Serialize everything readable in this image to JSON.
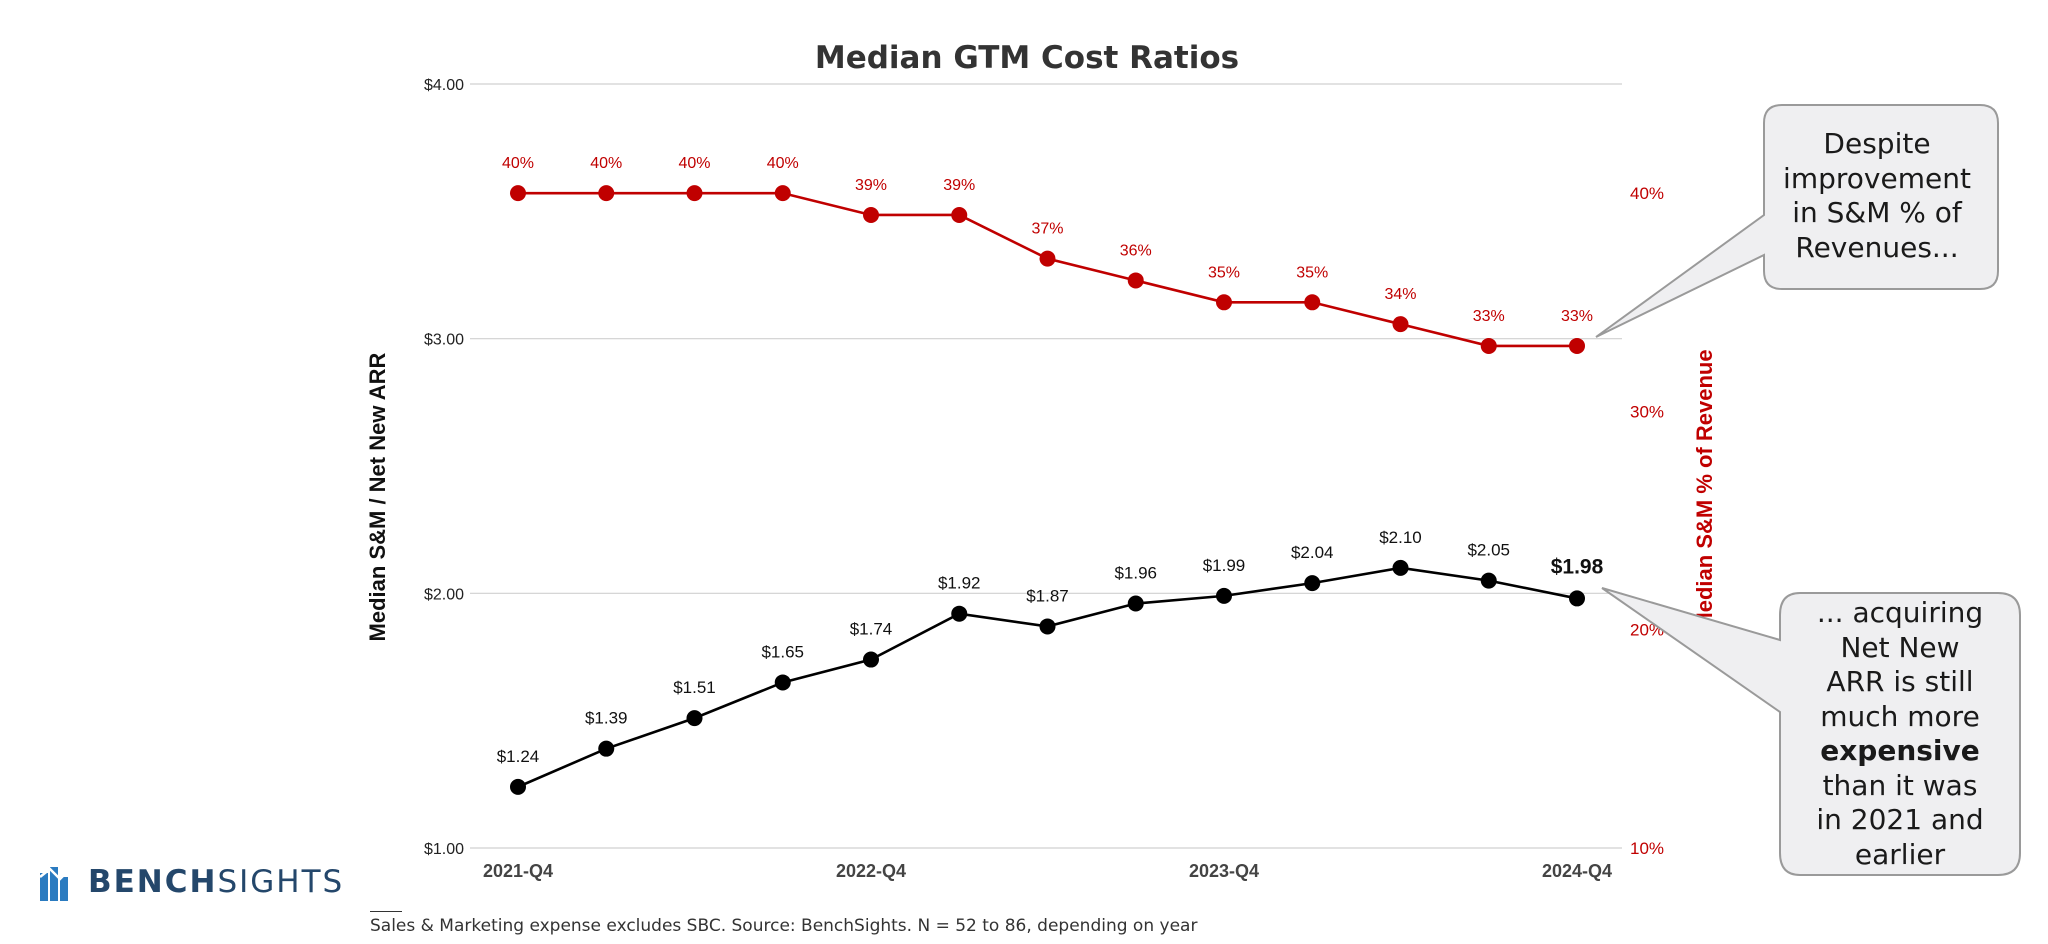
{
  "chart_data": {
    "type": "line",
    "title": "Median GTM Cost Ratios",
    "categories": [
      "2021-Q4",
      "",
      "",
      "",
      "2022-Q4",
      "",
      "",
      "",
      "2023-Q4",
      "",
      "",
      "",
      "2024-Q4"
    ],
    "x_tick_labels": [
      "2021-Q4",
      "2022-Q4",
      "2023-Q4",
      "2024-Q4"
    ],
    "ylabel": "Median S&M / Net New ARR",
    "y2label": "Median S&M % of Revenue",
    "ylim": [
      1.0,
      4.0
    ],
    "y_ticks": [
      "$1.00",
      "$2.00",
      "$3.00",
      "$4.00"
    ],
    "y2_ticks": [
      "10%",
      "20%",
      "30%",
      "40%"
    ],
    "y2_tick_values": [
      10,
      20,
      30,
      40
    ],
    "y2lim": [
      10,
      45
    ],
    "grid": true,
    "series": [
      {
        "axis": "left",
        "color": "#000000",
        "values": [
          1.24,
          1.39,
          1.51,
          1.65,
          1.74,
          1.92,
          1.87,
          1.96,
          1.99,
          2.04,
          2.1,
          2.05,
          1.98
        ],
        "labels": [
          "$1.24",
          "$1.39",
          "$1.51",
          "$1.65",
          "$1.74",
          "$1.92",
          "$1.87",
          "$1.96",
          "$1.99",
          "$2.04",
          "$2.10",
          "$2.05",
          "$1.98"
        ]
      },
      {
        "axis": "right",
        "color": "#c00000",
        "values": [
          40,
          40,
          40,
          40,
          39,
          39,
          37,
          36,
          35,
          35,
          34,
          33,
          33
        ],
        "labels": [
          "40%",
          "40%",
          "40%",
          "40%",
          "39%",
          "39%",
          "37%",
          "36%",
          "35%",
          "35%",
          "34%",
          "33%",
          "33%"
        ]
      }
    ],
    "annotations": [
      {
        "text": "Despite improvement in S&M % of Revenues...",
        "lines": [
          "Despite",
          "improvement",
          "in S&M % of",
          "Revenues..."
        ]
      },
      {
        "text": "... acquiring Net New ARR is still much more expensive than it was in 2021 and earlier",
        "lines": [
          "... acquiring",
          "Net New",
          "ARR is still",
          "much more",
          "expensive",
          "than it was",
          "in 2021 and",
          "earlier"
        ],
        "bold_line_index": 4
      }
    ]
  },
  "logo": {
    "part1": "BENCH",
    "part2": "SIGHTS"
  },
  "footnote": "Sales & Marketing expense excludes SBC.  Source: BenchSights. N = 52 to 86, depending on year",
  "colors": {
    "black_series": "#000000",
    "red_series": "#c00000",
    "grid": "#d0d0d0",
    "callout_fill": "#efeff1",
    "callout_stroke": "#9a9a9a",
    "logo": "#24476b"
  }
}
